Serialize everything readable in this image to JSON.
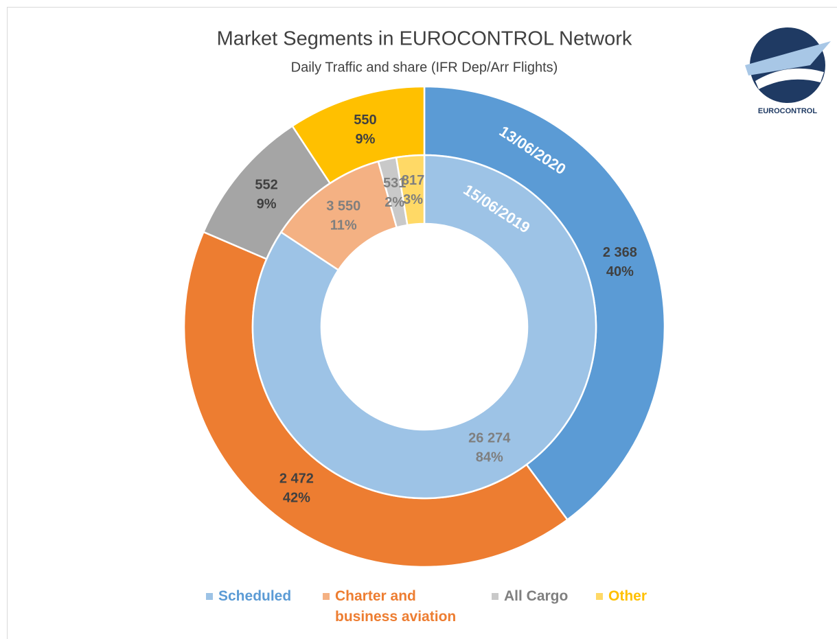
{
  "chart_data": {
    "type": "donut",
    "title": "Market Segments in EUROCONTROL Network",
    "subtitle": "Daily Traffic and share (IFR Dep/Arr Flights)",
    "logo_text": "EUROCONTROL",
    "categories": [
      "Scheduled",
      "Charter and business aviation",
      "All Cargo",
      "Other"
    ],
    "legend_text_colors": [
      "#5b9bd5",
      "#ed7d31",
      "#7f7f7f",
      "#ffc000"
    ],
    "series": [
      {
        "name": "13/06/2020",
        "ring": "outer",
        "colors": [
          "#5b9bd5",
          "#ed7d31",
          "#a5a5a5",
          "#ffc000"
        ],
        "values": [
          2368,
          2472,
          552,
          550
        ],
        "value_labels": [
          "2 368",
          "2 472",
          "552",
          "550"
        ],
        "shares": [
          40,
          42,
          9,
          9
        ],
        "share_labels": [
          "40%",
          "42%",
          "9%",
          "9%"
        ]
      },
      {
        "name": "15/06/2019",
        "ring": "inner",
        "colors": [
          "#9dc3e6",
          "#f4b183",
          "#c9c9c9",
          "#ffd966"
        ],
        "values": [
          26274,
          3550,
          531,
          817
        ],
        "value_labels": [
          "26 274",
          "3 550",
          "531",
          "817"
        ],
        "shares": [
          84,
          11,
          2,
          3
        ],
        "share_labels": [
          "84%",
          "11%",
          "2%",
          "3%"
        ]
      }
    ]
  }
}
